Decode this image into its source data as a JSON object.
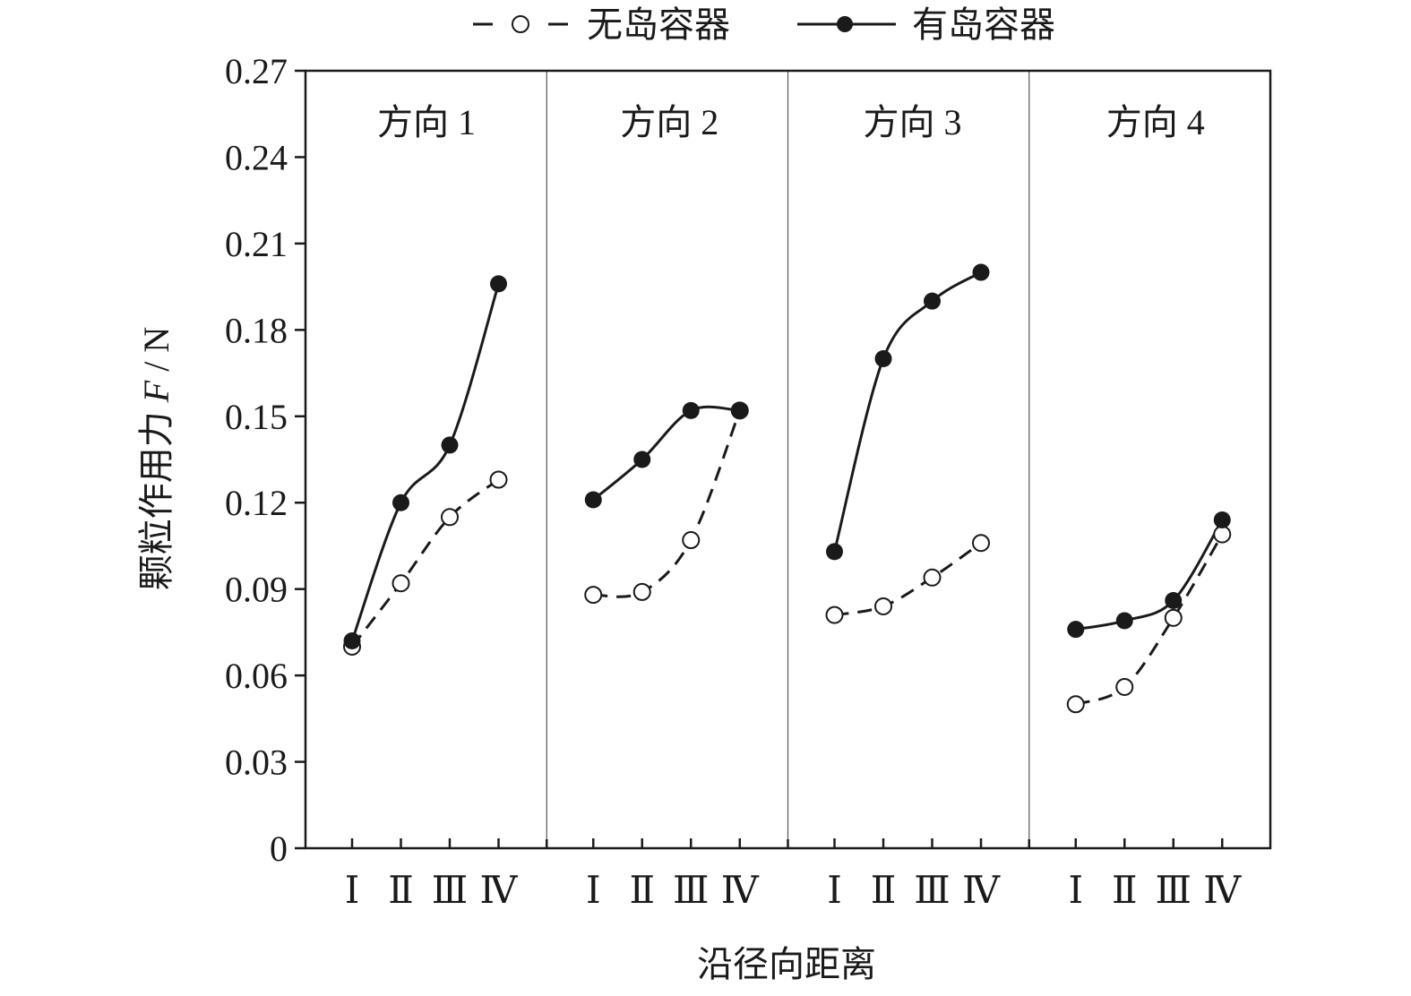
{
  "chart_data": {
    "type": "line",
    "ylabel_main": "颗粒作用力",
    "ylabel_var": "F",
    "ylabel_unit": "/ N",
    "xlabel": "沿径向距离",
    "ylim": [
      0,
      0.27
    ],
    "yticks": [
      "0",
      "0.03",
      "0.06",
      "0.09",
      "0.12",
      "0.15",
      "0.18",
      "0.21",
      "0.24",
      "0.27"
    ],
    "ytick_values": [
      0,
      0.03,
      0.06,
      0.09,
      0.12,
      0.15,
      0.18,
      0.21,
      0.24,
      0.27
    ],
    "categories": [
      "Ⅰ",
      "Ⅱ",
      "Ⅲ",
      "Ⅳ"
    ],
    "legend_position": "top",
    "grid": false,
    "series": [
      {
        "name": "无岛容器",
        "style": "dashed",
        "marker": "open-circle",
        "color": "#1a1a1a"
      },
      {
        "name": "有岛容器",
        "style": "solid",
        "marker": "filled-circle",
        "color": "#1a1a1a"
      }
    ],
    "panels": [
      {
        "title": "方向 1",
        "values": {
          "无岛容器": [
            0.07,
            0.092,
            0.115,
            0.128
          ],
          "有岛容器": [
            0.072,
            0.12,
            0.14,
            0.196
          ]
        }
      },
      {
        "title": "方向 2",
        "values": {
          "无岛容器": [
            0.088,
            0.089,
            0.107,
            0.152
          ],
          "有岛容器": [
            0.121,
            0.135,
            0.152,
            0.152
          ]
        }
      },
      {
        "title": "方向 3",
        "values": {
          "无岛容器": [
            0.081,
            0.084,
            0.094,
            0.106
          ],
          "有岛容器": [
            0.103,
            0.17,
            0.19,
            0.2
          ]
        }
      },
      {
        "title": "方向 4",
        "values": {
          "无岛容器": [
            0.05,
            0.056,
            0.08,
            0.109
          ],
          "有岛容器": [
            0.076,
            0.079,
            0.086,
            0.114
          ]
        }
      }
    ]
  }
}
